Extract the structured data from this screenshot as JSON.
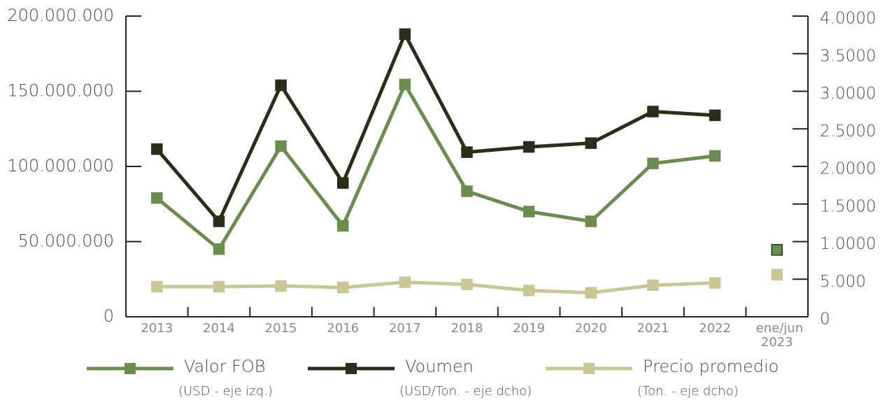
{
  "chart_data": {
    "type": "line",
    "categories": [
      "2013",
      "2014",
      "2015",
      "2016",
      "2017",
      "2018",
      "2019",
      "2020",
      "2021",
      "2022",
      "ene/jun 2023"
    ],
    "connect_last_point": false,
    "series": [
      {
        "name": "Valor FOB",
        "unit": "(USD - eje izq.)",
        "color": "#6b8c4f",
        "values": [
          79000000,
          45000000,
          113500000,
          60500000,
          154500000,
          83500000,
          70000000,
          63500000,
          102000000,
          107000000,
          44500000
        ]
      },
      {
        "name": "Voumen",
        "unit": "(USD/Ton. - eje dcho)",
        "color": "#2c2c1a",
        "axis": "y2",
        "values": [
          22300,
          12700,
          30800,
          17800,
          37600,
          21900,
          22600,
          23100,
          27300,
          26800,
          null
        ]
      },
      {
        "name": "Precio promedio",
        "unit": "(Ton. - eje dcho)",
        "color": "#c9c795",
        "axis": "y2",
        "values": [
          4000,
          4000,
          4100,
          3900,
          4600,
          4300,
          3500,
          3200,
          4200,
          4500,
          5600
        ]
      }
    ],
    "ylim": [
      0,
      200000000
    ],
    "yticks": [
      0,
      {
        "value": 50000000,
        "label": "50.000.000"
      },
      {
        "value": 100000000,
        "label": "100.000.000"
      },
      {
        "value": 150000000,
        "label": "150.000.000"
      },
      {
        "value": 200000000,
        "label": "200.000.000"
      }
    ],
    "y2lim": [
      0,
      40000
    ],
    "y2ticks": [
      0,
      {
        "value": 5000,
        "label": "5.000"
      },
      {
        "value": 10000,
        "label": "1.0000"
      },
      {
        "value": 15000,
        "label": "1.5000"
      },
      {
        "value": 20000,
        "label": "2.0000"
      },
      {
        "value": 25000,
        "label": "2.5000"
      },
      {
        "value": 30000,
        "label": "3.0000"
      },
      {
        "value": 35000,
        "label": "3.5000"
      },
      {
        "value": 40000,
        "label": "4.0000"
      }
    ]
  }
}
